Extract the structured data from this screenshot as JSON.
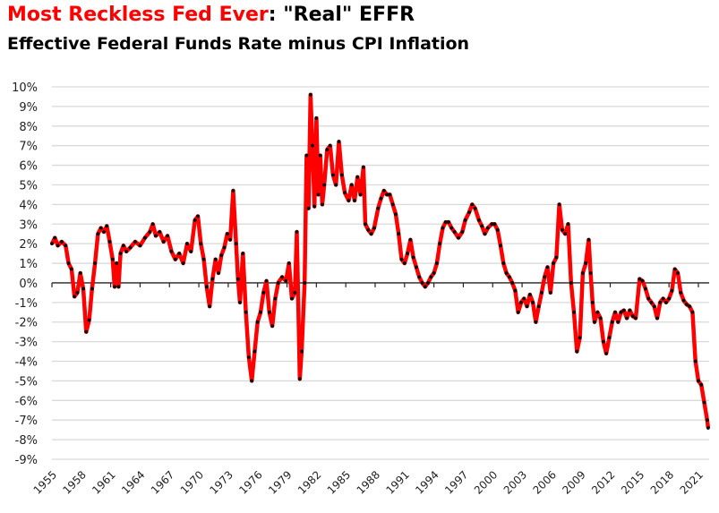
{
  "title": {
    "highlight": "Most Reckless Fed Ever",
    "rest": ": \"Real\" EFFR"
  },
  "subtitle": "Effective Federal Funds Rate minus CPI Inflation",
  "colors": {
    "line": "#ff0000",
    "marker": "#000000",
    "grid": "#d9d9d9",
    "highlight": "#ff0000"
  },
  "chart_data": {
    "type": "line",
    "title": "Most Reckless Fed Ever: \"Real\" EFFR",
    "subtitle": "Effective Federal Funds Rate minus CPI Inflation",
    "xlabel": "",
    "ylabel": "",
    "ylim": [
      -9,
      10
    ],
    "xlim": [
      1955,
      2022.1
    ],
    "grid": true,
    "y_ticks": [
      "10%",
      "9%",
      "8%",
      "7%",
      "6%",
      "5%",
      "4%",
      "3%",
      "2%",
      "1%",
      "0%",
      "-1%",
      "-2%",
      "-3%",
      "-4%",
      "-5%",
      "-6%",
      "-7%",
      "-8%",
      "-9%"
    ],
    "x_ticks": [
      "1955",
      "1958",
      "1961",
      "1964",
      "1967",
      "1970",
      "1973",
      "1976",
      "1979",
      "1982",
      "1985",
      "1988",
      "1991",
      "1994",
      "1997",
      "2000",
      "2003",
      "2006",
      "2009",
      "2012",
      "2015",
      "2018",
      "2021"
    ],
    "series": [
      {
        "name": "Real EFFR",
        "x": [
          1955.0,
          1955.3,
          1955.6,
          1956,
          1956.4,
          1956.7,
          1957,
          1957.3,
          1957.6,
          1957.9,
          1958.2,
          1958.5,
          1958.8,
          1959.1,
          1959.4,
          1959.7,
          1960,
          1960.3,
          1960.6,
          1960.9,
          1961.2,
          1961.4,
          1961.6,
          1961.8,
          1962,
          1962.3,
          1962.6,
          1963,
          1963.5,
          1964,
          1964.5,
          1965,
          1965.3,
          1965.6,
          1966,
          1966.4,
          1966.8,
          1967.2,
          1967.6,
          1968,
          1968.4,
          1968.8,
          1969.2,
          1969.6,
          1969.9,
          1970.2,
          1970.5,
          1970.8,
          1971.1,
          1971.4,
          1971.7,
          1972,
          1972.3,
          1972.6,
          1972.9,
          1973.2,
          1973.5,
          1973.8,
          1974.0,
          1974.2,
          1974.5,
          1974.8,
          1975.1,
          1975.4,
          1975.7,
          1976,
          1976.3,
          1976.6,
          1976.9,
          1977.2,
          1977.5,
          1977.8,
          1978.1,
          1978.5,
          1978.9,
          1979.2,
          1979.5,
          1979.8,
          1980.0,
          1980.3,
          1980.5,
          1980.8,
          1981.0,
          1981.2,
          1981.4,
          1981.6,
          1981.8,
          1982.0,
          1982.2,
          1982.4,
          1982.6,
          1982.8,
          1983.1,
          1983.4,
          1983.7,
          1984,
          1984.3,
          1984.6,
          1984.9,
          1985.3,
          1985.6,
          1985.9,
          1986.2,
          1986.5,
          1986.8,
          1987.0,
          1987.3,
          1987.6,
          1987.9,
          1988.3,
          1988.6,
          1988.9,
          1989.2,
          1989.5,
          1989.8,
          1990.1,
          1990.4,
          1990.7,
          1991,
          1991.3,
          1991.6,
          1991.9,
          1992.2,
          1992.5,
          1992.8,
          1993.1,
          1993.4,
          1993.7,
          1994,
          1994.3,
          1994.6,
          1994.9,
          1995.2,
          1995.5,
          1995.8,
          1996.1,
          1996.5,
          1996.9,
          1997.2,
          1997.6,
          1997.9,
          1998.2,
          1998.6,
          1998.9,
          1999.2,
          1999.5,
          1999.9,
          2000.2,
          2000.5,
          2000.8,
          2001.1,
          2001.4,
          2001.7,
          2002.0,
          2002.3,
          2002.6,
          2002.9,
          2003.2,
          2003.5,
          2003.8,
          2004.1,
          2004.4,
          2004.7,
          2005.0,
          2005.3,
          2005.6,
          2005.9,
          2006.2,
          2006.5,
          2006.8,
          2007.1,
          2007.4,
          2007.7,
          2008.0,
          2008.3,
          2008.6,
          2008.9,
          2009.2,
          2009.5,
          2009.8,
          2010.0,
          2010.2,
          2010.4,
          2010.7,
          2011.0,
          2011.3,
          2011.6,
          2011.9,
          2012.2,
          2012.5,
          2012.8,
          2013.1,
          2013.4,
          2013.7,
          2014,
          2014.3,
          2014.6,
          2015.0,
          2015.3,
          2015.6,
          2015.9,
          2016.2,
          2016.5,
          2016.8,
          2017.1,
          2017.4,
          2017.7,
          2018.0,
          2018.3,
          2018.6,
          2018.9,
          2019.2,
          2019.5,
          2019.8,
          2020.1,
          2020.4,
          2020.7,
          2021.0,
          2021.3,
          2021.6,
          2021.9,
          2022.0
        ],
        "y": [
          2.0,
          2.3,
          1.9,
          2.1,
          1.9,
          1.0,
          0.7,
          -0.7,
          -0.5,
          0.5,
          -0.3,
          -2.5,
          -1.9,
          -0.3,
          1.0,
          2.5,
          2.8,
          2.6,
          2.9,
          2.1,
          1.2,
          -0.2,
          1.0,
          -0.2,
          1.5,
          1.9,
          1.6,
          1.8,
          2.1,
          1.9,
          2.3,
          2.6,
          3.0,
          2.4,
          2.6,
          2.1,
          2.4,
          1.6,
          1.2,
          1.5,
          1.0,
          2.0,
          1.6,
          3.2,
          3.4,
          2.0,
          1.2,
          -0.2,
          -1.2,
          0.2,
          1.2,
          0.5,
          1.4,
          1.8,
          2.5,
          2.2,
          4.7,
          2.0,
          0.2,
          -1.0,
          1.5,
          -1.5,
          -3.8,
          -5.0,
          -3.5,
          -2.0,
          -1.5,
          -0.5,
          0.1,
          -1.5,
          -2.2,
          -0.8,
          0.0,
          0.3,
          0.1,
          1.0,
          -0.8,
          -0.5,
          2.6,
          -4.9,
          -3.5,
          0.0,
          6.5,
          3.8,
          9.6,
          7.0,
          3.9,
          8.4,
          4.5,
          6.5,
          4.0,
          5.0,
          6.8,
          7.0,
          5.5,
          5.0,
          7.2,
          5.5,
          4.6,
          4.2,
          5.0,
          4.2,
          5.4,
          4.5,
          5.9,
          3.0,
          2.7,
          2.5,
          2.8,
          3.8,
          4.3,
          4.7,
          4.5,
          4.5,
          4.0,
          3.5,
          2.5,
          1.2,
          1.0,
          1.5,
          2.2,
          1.3,
          0.8,
          0.3,
          0.0,
          -0.2,
          0.0,
          0.3,
          0.5,
          1.0,
          2.0,
          2.8,
          3.1,
          3.1,
          2.8,
          2.6,
          2.3,
          2.6,
          3.2,
          3.6,
          4.0,
          3.8,
          3.2,
          2.9,
          2.5,
          2.8,
          3.0,
          3.0,
          2.7,
          1.9,
          1.0,
          0.5,
          0.3,
          0.0,
          -0.4,
          -1.5,
          -1.0,
          -0.8,
          -1.2,
          -0.6,
          -1.0,
          -2.0,
          -1.2,
          -0.5,
          0.3,
          0.8,
          -0.5,
          1.0,
          1.3,
          4.0,
          2.7,
          2.5,
          3.0,
          0.0,
          -1.5,
          -3.5,
          -2.8,
          0.5,
          1.0,
          2.2,
          0.5,
          -1.0,
          -2.0,
          -1.5,
          -1.8,
          -3.0,
          -3.6,
          -2.8,
          -2.0,
          -1.5,
          -2.0,
          -1.5,
          -1.4,
          -1.8,
          -1.4,
          -1.7,
          -1.8,
          0.2,
          0.1,
          -0.3,
          -0.8,
          -1.0,
          -1.2,
          -1.8,
          -1.0,
          -0.8,
          -1.0,
          -0.8,
          -0.4,
          0.7,
          0.5,
          -0.5,
          -0.9,
          -1.1,
          -1.2,
          -1.5,
          -4.0,
          -5.0,
          -5.2,
          -6.1,
          -7.0,
          -7.4
        ]
      }
    ]
  }
}
